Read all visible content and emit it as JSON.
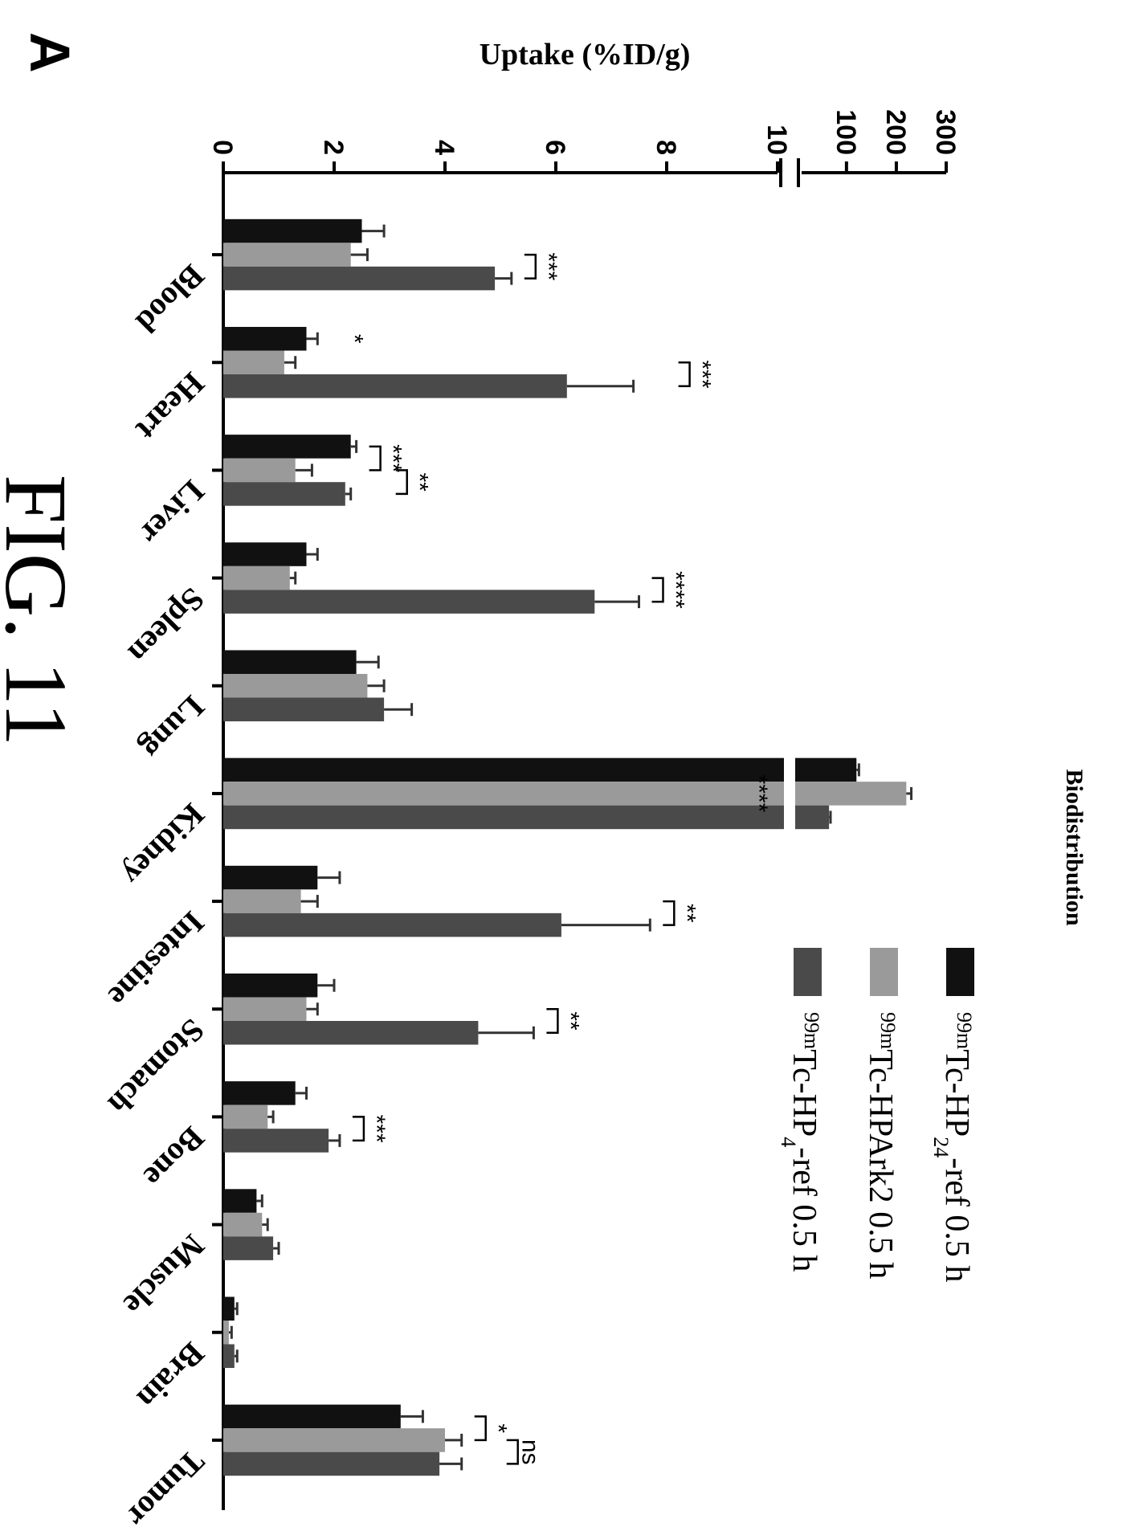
{
  "panel_label": "A",
  "figure_label": "FIG. 11",
  "colors": {
    "series": [
      "#111111",
      "#9a9a9a",
      "#4a4a4a"
    ],
    "axis": "#000000"
  },
  "chart_data": {
    "type": "bar",
    "title": "Biodistribution",
    "ylabel": "Uptake (%ID/g)",
    "xlabel": "",
    "categories": [
      "Blood",
      "Heart",
      "Liver",
      "Spleen",
      "Lung",
      "Kidney",
      "Intestine",
      "Stomach",
      "Bone",
      "Muscle",
      "Brain",
      "Tumor"
    ],
    "y_axis": {
      "broken": true,
      "lower_ticks": [
        "0",
        "2",
        "4",
        "6",
        "8",
        "10"
      ],
      "upper_ticks": [
        "100",
        "200",
        "300"
      ],
      "lower_range": [
        0,
        10
      ],
      "upper_range": [
        10,
        300
      ]
    },
    "series": [
      {
        "name_prefix": "99m",
        "name_main": "Tc-HP",
        "name_sub": "24",
        "name_suffix": "-ref 0.5 h",
        "values": [
          2.5,
          1.5,
          2.3,
          1.5,
          2.4,
          120,
          1.7,
          1.7,
          1.3,
          0.6,
          0.2,
          3.2
        ],
        "errors": [
          0.4,
          0.2,
          0.1,
          0.2,
          0.4,
          5,
          0.4,
          0.3,
          0.2,
          0.1,
          0.05,
          0.4
        ]
      },
      {
        "name_prefix": "99m",
        "name_main": "Tc-HPArk2 0.5 h",
        "name_sub": "",
        "name_suffix": "",
        "values": [
          2.3,
          1.1,
          1.3,
          1.2,
          2.6,
          220,
          1.4,
          1.5,
          0.8,
          0.7,
          0.1,
          4.0
        ],
        "errors": [
          0.3,
          0.2,
          0.3,
          0.1,
          0.3,
          10,
          0.3,
          0.2,
          0.1,
          0.1,
          0.05,
          0.3
        ]
      },
      {
        "name_prefix": "99m",
        "name_main": "Tc-HP",
        "name_sub": "4",
        "name_suffix": "-ref 0.5 h",
        "values": [
          4.9,
          6.2,
          2.2,
          6.7,
          2.9,
          65,
          6.1,
          4.6,
          1.9,
          0.9,
          0.2,
          3.9
        ],
        "errors": [
          0.3,
          1.2,
          0.1,
          0.8,
          0.5,
          3,
          1.6,
          1.0,
          0.2,
          0.1,
          0.05,
          0.4
        ]
      }
    ],
    "significance": [
      {
        "category": "Blood",
        "pairs": [
          {
            "label": "***",
            "from": 1,
            "to": 2
          }
        ]
      },
      {
        "category": "Heart",
        "pairs": [
          {
            "label": "*",
            "from": 0,
            "to": 0
          },
          {
            "label": "***",
            "from": 1,
            "to": 2
          }
        ]
      },
      {
        "category": "Liver",
        "pairs": [
          {
            "label": "***",
            "from": 0,
            "to": 1
          },
          {
            "label": "**",
            "from": 1,
            "to": 2
          }
        ]
      },
      {
        "category": "Spleen",
        "pairs": [
          {
            "label": "****",
            "from": 1,
            "to": 2
          }
        ]
      },
      {
        "category": "Kidney",
        "pairs": [
          {
            "label": "****",
            "from": 1,
            "to": 1
          }
        ]
      },
      {
        "category": "Intestine",
        "pairs": [
          {
            "label": "**",
            "from": 1,
            "to": 2
          }
        ]
      },
      {
        "category": "Stomach",
        "pairs": [
          {
            "label": "**",
            "from": 1,
            "to": 2
          }
        ]
      },
      {
        "category": "Bone",
        "pairs": [
          {
            "label": "***",
            "from": 1,
            "to": 2
          }
        ]
      },
      {
        "category": "Tumor",
        "pairs": [
          {
            "label": "*",
            "from": 0,
            "to": 1
          },
          {
            "label": "ns",
            "from": 1,
            "to": 2
          }
        ]
      }
    ],
    "legend_placement": "top-right"
  }
}
